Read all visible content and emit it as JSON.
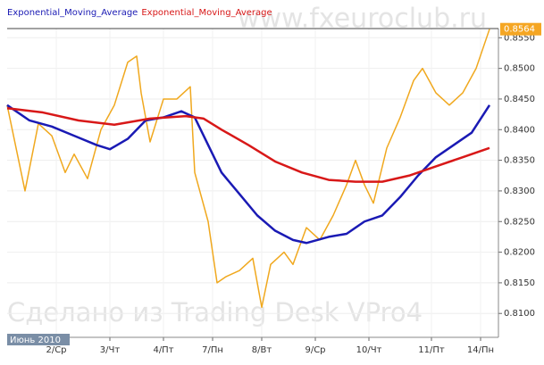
{
  "chart_data": {
    "type": "line",
    "legend": [
      "Exponential_Moving_Average",
      "Exponential_Moving_Average"
    ],
    "watermark_top": "www.fxeuroclub.ru",
    "watermark_bottom": "Сделано из Trading Desk VPro4",
    "period_label": "Июнь 2010",
    "last_price": 0.8564,
    "last_price_color": "#f5a623",
    "grid": true,
    "xlim": [
      0,
      110
    ],
    "xticks": [
      {
        "value": 11,
        "label": "2/Ср"
      },
      {
        "value": 23,
        "label": "3/Чт"
      },
      {
        "value": 35,
        "label": "4/Пт"
      },
      {
        "value": 46,
        "label": "7/Пн"
      },
      {
        "value": 57,
        "label": "8/Вт"
      },
      {
        "value": 69,
        "label": "9/Ср"
      },
      {
        "value": 81,
        "label": "10/Чт"
      },
      {
        "value": 95,
        "label": "11/Пт"
      },
      {
        "value": 106,
        "label": "14/Пн"
      }
    ],
    "ylim": [
      0.8061,
      0.8565
    ],
    "yticks": [
      {
        "value": 0.81,
        "label": "0.8100"
      },
      {
        "value": 0.815,
        "label": "0.8150"
      },
      {
        "value": 0.82,
        "label": "0.8200"
      },
      {
        "value": 0.825,
        "label": "0.8250"
      },
      {
        "value": 0.83,
        "label": "0.8300"
      },
      {
        "value": 0.835,
        "label": "0.8350"
      },
      {
        "value": 0.84,
        "label": "0.8400"
      },
      {
        "value": 0.845,
        "label": "0.8450"
      },
      {
        "value": 0.85,
        "label": "0.8500"
      },
      {
        "value": 0.855,
        "label": "0.8550"
      }
    ],
    "series": [
      {
        "color": "#f0a81e",
        "width": 1.5,
        "x": [
          0,
          4,
          7,
          10,
          13,
          15,
          18,
          21,
          24,
          27,
          29,
          30,
          32,
          35,
          38,
          41,
          42,
          45,
          47,
          49,
          52,
          55,
          57,
          59,
          62,
          64,
          67,
          70,
          73,
          76,
          78,
          80,
          82,
          85,
          88,
          91,
          93,
          96,
          99,
          102,
          105,
          108
        ],
        "values": [
          0.844,
          0.83,
          0.841,
          0.839,
          0.833,
          0.836,
          0.832,
          0.84,
          0.844,
          0.851,
          0.852,
          0.846,
          0.838,
          0.845,
          0.845,
          0.847,
          0.833,
          0.825,
          0.815,
          0.816,
          0.817,
          0.819,
          0.811,
          0.818,
          0.82,
          0.818,
          0.824,
          0.822,
          0.826,
          0.831,
          0.835,
          0.831,
          0.828,
          0.837,
          0.842,
          0.848,
          0.85,
          0.846,
          0.844,
          0.846,
          0.85,
          0.8564
        ]
      },
      {
        "name": "Exponential_Moving_Average",
        "color": "#1a1ab4",
        "width": 2.5,
        "x": [
          0,
          5,
          10,
          15,
          20,
          23,
          27,
          31,
          35,
          39,
          42,
          45,
          48,
          52,
          56,
          60,
          64,
          67,
          72,
          76,
          80,
          84,
          88,
          92,
          96,
          100,
          104,
          108
        ],
        "values": [
          0.844,
          0.8415,
          0.8405,
          0.839,
          0.8375,
          0.8368,
          0.8385,
          0.8415,
          0.842,
          0.843,
          0.842,
          0.8375,
          0.833,
          0.8295,
          0.826,
          0.8235,
          0.822,
          0.8215,
          0.8225,
          0.823,
          0.825,
          0.826,
          0.829,
          0.8325,
          0.8355,
          0.8375,
          0.8395,
          0.844
        ]
      },
      {
        "name": "Exponential_Moving_Average",
        "color": "#d81818",
        "width": 2.5,
        "x": [
          0,
          8,
          16,
          24,
          32,
          40,
          44,
          48,
          54,
          60,
          66,
          72,
          78,
          84,
          90,
          96,
          102,
          108
        ],
        "values": [
          0.8435,
          0.8428,
          0.8415,
          0.8408,
          0.8418,
          0.8422,
          0.8418,
          0.84,
          0.8375,
          0.8348,
          0.833,
          0.8318,
          0.8315,
          0.8315,
          0.8325,
          0.834,
          0.8355,
          0.837
        ]
      }
    ]
  }
}
